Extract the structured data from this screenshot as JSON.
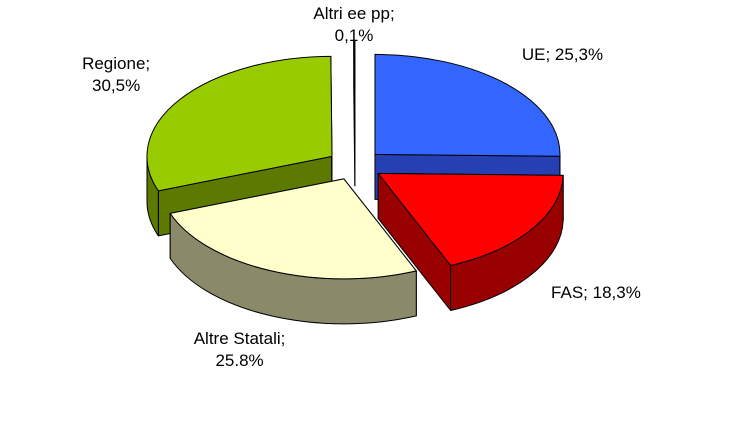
{
  "chart_data": {
    "type": "pie3d",
    "values": [
      25.3,
      18.3,
      25.8,
      30.5,
      0.1
    ],
    "value_labels": [
      "UE; 25,3%",
      "FAS; 18,3%",
      "Altre Statali;\n25.8%",
      "Regione;\n30,5%",
      "Altri ee pp;\n0,1%"
    ],
    "colors": [
      "#3366ff",
      "#ff0000",
      "#ffffcc",
      "#99cc00",
      "#00758f"
    ],
    "side_colors": [
      "#2640b3",
      "#990000",
      "#8a8a6a",
      "#5c7a00",
      "#004b5c"
    ]
  }
}
